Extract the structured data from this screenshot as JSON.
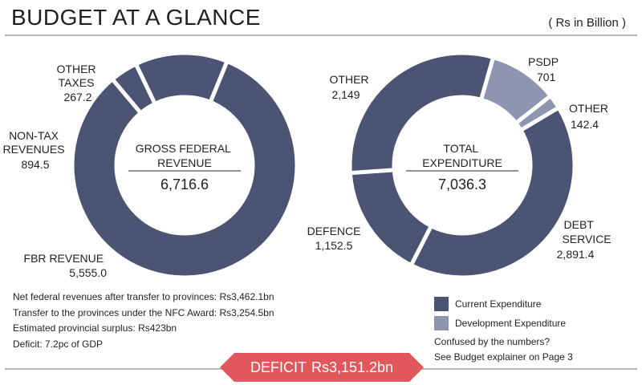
{
  "title": "BUDGET AT A GLANCE",
  "units": "( Rs in Billion )",
  "colors": {
    "current": "#4b5472",
    "development": "#8f95b1",
    "deficit": "#e2575b"
  },
  "chart_data": [
    {
      "type": "pie",
      "center_label": [
        "GROSS FEDERAL",
        "REVENUE"
      ],
      "center_value": "6,716.6",
      "slices": [
        {
          "label": [
            "OTHER",
            "TAXES"
          ],
          "value": 267.2,
          "value_text": "267.2",
          "category": "current"
        },
        {
          "label": [
            "NON-TAX",
            "REVENUES"
          ],
          "value": 894.5,
          "value_text": "894.5",
          "category": "current"
        },
        {
          "label": [
            "FBR REVENUE"
          ],
          "value": 5555.0,
          "value_text": "5,555.0",
          "category": "current"
        }
      ]
    },
    {
      "type": "pie",
      "center_label": [
        "TOTAL",
        "EXPENDITURE"
      ],
      "center_value": "7,036.3",
      "slices": [
        {
          "label": [
            "PSDP"
          ],
          "value": 701,
          "value_text": "701",
          "category": "development"
        },
        {
          "label": [
            "OTHER"
          ],
          "value": 142.4,
          "value_text": "142.4",
          "category": "development"
        },
        {
          "label": [
            "DEBT",
            "SERVICE"
          ],
          "value": 2891.4,
          "value_text": "2,891.4",
          "category": "current"
        },
        {
          "label": [
            "DEFENCE"
          ],
          "value": 1152.5,
          "value_text": "1,152.5",
          "category": "current"
        },
        {
          "label": [
            "OTHER"
          ],
          "value": 2149,
          "value_text": "2,149",
          "category": "current"
        }
      ]
    }
  ],
  "notes": [
    "Net federal revenues after transfer to provinces: Rs3,462.1bn",
    "Transfer to the provinces under the NFC Award: Rs3,254.5bn",
    "Estimated provincial surplus: Rs423bn",
    "Deficit: 7.2pc of GDP"
  ],
  "legend": {
    "current": "Current Expenditure",
    "development": "Development Expenditure"
  },
  "explainer": [
    "Confused by the numbers?",
    "See Budget explainer on Page 3"
  ],
  "deficit": {
    "label": "DEFICIT",
    "value": "Rs3,151.2bn"
  }
}
